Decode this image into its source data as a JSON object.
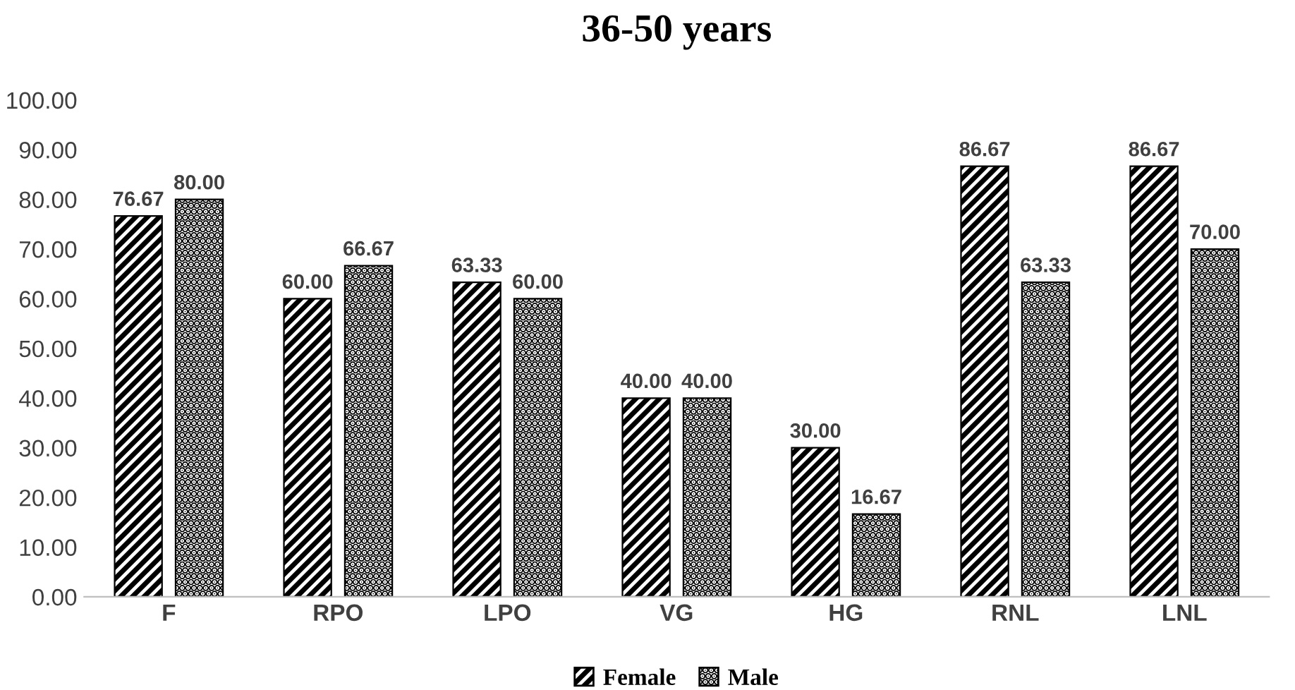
{
  "chart_data": {
    "type": "bar",
    "title": "36-50 years",
    "categories": [
      "F",
      "RPO",
      "LPO",
      "VG",
      "HG",
      "RNL",
      "LNL"
    ],
    "series": [
      {
        "name": "Female",
        "color": "#000000",
        "values": [
          76.67,
          60.0,
          63.33,
          40.0,
          30.0,
          86.67,
          86.67
        ],
        "value_labels": [
          "76.67",
          "60.00",
          "63.33",
          "40.00",
          "30.00",
          "86.67",
          "86.67"
        ]
      },
      {
        "name": "Male",
        "color": "#000000",
        "values": [
          80.0,
          66.67,
          60.0,
          40.0,
          16.67,
          63.33,
          70.0
        ],
        "value_labels": [
          "80.00",
          "66.67",
          "60.00",
          "40.00",
          "16.67",
          "63.33",
          "70.00"
        ]
      }
    ],
    "ylim": [
      0,
      100
    ],
    "yticks": [
      {
        "value": 0,
        "label": "0.00"
      },
      {
        "value": 10,
        "label": "10.00"
      },
      {
        "value": 20,
        "label": "20.00"
      },
      {
        "value": 30,
        "label": "30.00"
      },
      {
        "value": 40,
        "label": "40.00"
      },
      {
        "value": 50,
        "label": "50.00"
      },
      {
        "value": 60,
        "label": "60.00"
      },
      {
        "value": 70,
        "label": "70.00"
      },
      {
        "value": 80,
        "label": "80.00"
      },
      {
        "value": 90,
        "label": "90.00"
      },
      {
        "value": 100,
        "label": "100.00"
      }
    ],
    "grid": false,
    "legend": "bottom"
  }
}
